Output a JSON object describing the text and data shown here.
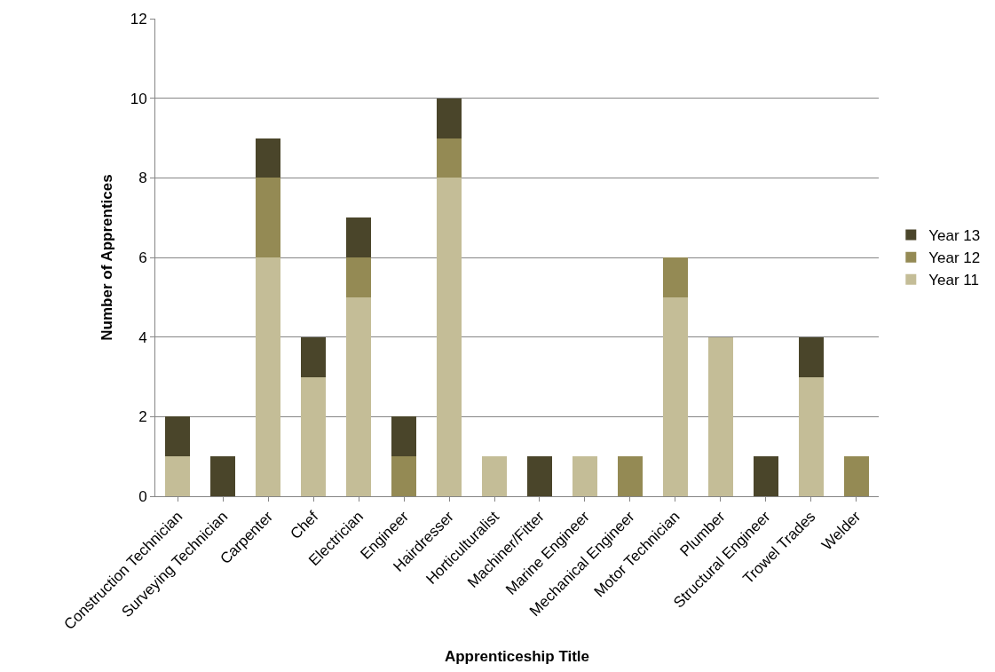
{
  "chart_data": {
    "type": "bar",
    "stacked": true,
    "xlabel": "Apprenticeship Title",
    "ylabel": "Number of Apprentices",
    "categories": [
      "Construction Technician",
      "Surveying Technician",
      "Carpenter",
      "Chef",
      "Electrician",
      "Engineer",
      "Hairdresser",
      "Horticulturalist",
      "Machiner/Fitter",
      "Marine Engineer",
      "Mechanical Engineer",
      "Motor Technician",
      "Plumber",
      "Structural Engineer",
      "Trowel Trades",
      "Welder"
    ],
    "series": [
      {
        "name": "Year 11",
        "color": "#c4bd97",
        "values": [
          1,
          0,
          6,
          3,
          5,
          0,
          8,
          1,
          0,
          1,
          0,
          5,
          4,
          0,
          3,
          0
        ]
      },
      {
        "name": "Year 12",
        "color": "#948a54",
        "values": [
          0,
          0,
          2,
          0,
          1,
          1,
          1,
          0,
          0,
          0,
          1,
          1,
          0,
          0,
          0,
          1
        ]
      },
      {
        "name": "Year 13",
        "color": "#4a452a",
        "values": [
          1,
          1,
          1,
          1,
          1,
          1,
          1,
          0,
          1,
          0,
          0,
          0,
          0,
          1,
          1,
          0
        ]
      }
    ],
    "ylim": [
      0,
      12
    ],
    "yticks": [
      0,
      2,
      4,
      6,
      8,
      10,
      12
    ],
    "grid": "y",
    "legend": "right"
  }
}
